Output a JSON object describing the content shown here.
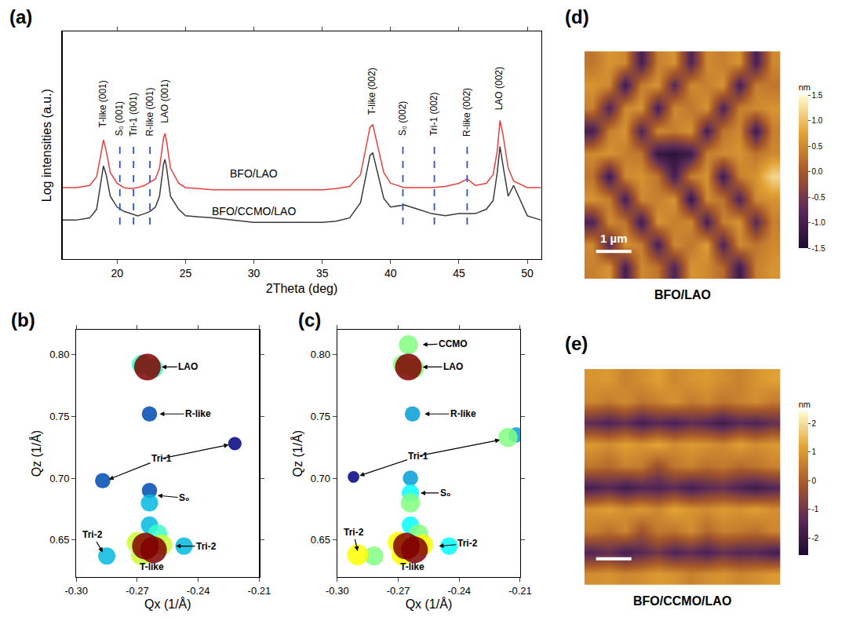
{
  "chart_data": [
    {
      "panel": "(a)",
      "type": "line",
      "xlabel": "2Theta (deg)",
      "ylabel": "Log intensities (a.u.)",
      "xlim": [
        16,
        51
      ],
      "xticks": [
        20,
        25,
        30,
        35,
        40,
        45,
        50
      ],
      "ylim": [
        0,
        10.5
      ],
      "tick_labels": "x",
      "series": [
        {
          "color": "#e8403f",
          "x": [
            16,
            17,
            18,
            18.5,
            18.8,
            19.0,
            19.2,
            19.5,
            20,
            20.5,
            21,
            21.5,
            22,
            22.4,
            22.8,
            23.1,
            23.4,
            23.5,
            23.6,
            23.9,
            24.5,
            25,
            27,
            30,
            33,
            35,
            36,
            37,
            37.8,
            38.2,
            38.5,
            38.7,
            39,
            39.5,
            40,
            41,
            42,
            43,
            44,
            45,
            45.6,
            46.2,
            47,
            47.5,
            47.8,
            48.0,
            48.2,
            48.6,
            49,
            50,
            51
          ],
          "values": [
            3.3,
            3.3,
            3.4,
            3.8,
            4.8,
            5.5,
            5.0,
            4.0,
            3.5,
            3.3,
            3.25,
            3.3,
            3.4,
            3.55,
            3.7,
            4.2,
            5.6,
            5.8,
            5.5,
            4.2,
            3.5,
            3.3,
            3.2,
            3.2,
            3.2,
            3.2,
            3.25,
            3.35,
            3.9,
            5.2,
            6.1,
            6.2,
            5.4,
            4.0,
            3.5,
            3.3,
            3.3,
            3.3,
            3.35,
            3.5,
            3.7,
            3.4,
            3.5,
            3.9,
            5.0,
            6.4,
            5.8,
            4.2,
            3.6,
            3.3,
            3.3
          ]
        },
        {
          "color": "#3a3a3a",
          "x": [
            16,
            17,
            18,
            18.5,
            18.8,
            19.0,
            19.2,
            19.5,
            20,
            20.5,
            21,
            21.5,
            22,
            22.4,
            22.8,
            23.1,
            23.4,
            23.5,
            23.6,
            23.9,
            24.5,
            25,
            27,
            30,
            33,
            35,
            36,
            37,
            37.8,
            38.2,
            38.5,
            38.7,
            39,
            39.5,
            40,
            41,
            42,
            43,
            44,
            45,
            45.6,
            46.2,
            47,
            47.5,
            47.8,
            48.0,
            48.2,
            48.6,
            49,
            50,
            51
          ],
          "values": [
            1.8,
            1.8,
            1.9,
            2.3,
            3.5,
            4.3,
            3.9,
            2.9,
            2.4,
            2.2,
            2.1,
            2.0,
            2.1,
            2.2,
            2.4,
            2.9,
            4.4,
            4.6,
            4.3,
            2.9,
            2.3,
            2.0,
            1.9,
            1.7,
            1.7,
            1.7,
            1.75,
            1.9,
            2.6,
            3.9,
            4.8,
            4.9,
            4.1,
            2.8,
            2.4,
            2.5,
            2.3,
            2.1,
            2.0,
            2.1,
            2.1,
            2.1,
            2.3,
            2.7,
            4.0,
            5.2,
            4.4,
            2.9,
            3.4,
            2.0,
            1.8
          ]
        }
      ],
      "annotations": [
        {
          "text": "BFO/LAO",
          "x": 30,
          "y": 3.6
        },
        {
          "text": "BFO/CCMO/LAO",
          "x": 30,
          "y": 1.85
        }
      ],
      "peak_labels": [
        {
          "text": "T-like (001)",
          "x": 19.0,
          "y": 6.0
        },
        {
          "text": "S₀ (001)",
          "x": 20.2,
          "y": 5.6
        },
        {
          "text": "Tri-1 (001)",
          "x": 21.2,
          "y": 5.6
        },
        {
          "text": "R-like (001)",
          "x": 22.4,
          "y": 5.6
        },
        {
          "text": "LAO (001)",
          "x": 23.5,
          "y": 6.2
        },
        {
          "text": "T-like (002)",
          "x": 38.6,
          "y": 6.6
        },
        {
          "text": "S₀ (002)",
          "x": 40.9,
          "y": 5.6
        },
        {
          "text": "Tri-1 (002)",
          "x": 43.2,
          "y": 5.6
        },
        {
          "text": "R-like (002)",
          "x": 45.6,
          "y": 5.6
        },
        {
          "text": "LAO (002)",
          "x": 47.9,
          "y": 6.8
        }
      ],
      "vlines": {
        "x": [
          20.2,
          21.2,
          22.4,
          40.9,
          43.2,
          45.6
        ],
        "from": 1.6,
        "to": 5.5,
        "color": "#2b4fd8",
        "line_style": "dash"
      }
    },
    {
      "panel": "(b)",
      "type": "scatter",
      "xlabel": "Qx (1/Å)",
      "ylabel": "Qz (1/Å)",
      "xlim": [
        -0.3,
        -0.21
      ],
      "xticks": [
        {
          "value": -0.3,
          "label": "-0.30"
        },
        -0.27,
        -0.24,
        -0.21
      ],
      "ylim": [
        0.62,
        0.82
      ],
      "yticks": [
        0.65,
        {
          "value": 0.7,
          "label": "0.70"
        },
        0.75,
        {
          "value": 0.8,
          "label": "0.80"
        }
      ],
      "x": [
        -0.222,
        -0.264,
        -0.287,
        -0.264,
        -0.264,
        -0.264,
        -0.285,
        -0.247,
        -0.268,
        -0.262,
        -0.26,
        -0.27,
        -0.258,
        -0.268,
        -0.266,
        -0.262,
        -0.265
      ],
      "values": [
        0.728,
        0.752,
        0.698,
        0.69,
        0.68,
        0.662,
        0.637,
        0.645,
        0.792,
        0.789,
        0.655,
        0.648,
        0.646,
        0.638,
        0.645,
        0.642,
        0.79
      ],
      "intensity": [
        3,
        4,
        4,
        4,
        5,
        5,
        5,
        5,
        6,
        6,
        6,
        7,
        7,
        7,
        10,
        10,
        10
      ],
      "labels": [
        {
          "text": "LAO",
          "x": -0.245,
          "y": 0.79,
          "targets": [
            [
              -0.258,
              0.79
            ]
          ]
        },
        {
          "text": "R-like",
          "x": -0.24,
          "y": 0.752,
          "targets": [
            [
              -0.259,
              0.752
            ]
          ]
        },
        {
          "text": "Tri-1",
          "x": -0.258,
          "y": 0.716,
          "targets": [
            [
              -0.284,
              0.699
            ],
            [
              -0.225,
              0.727
            ]
          ]
        },
        {
          "text": "S₀",
          "x": -0.247,
          "y": 0.684,
          "targets": [
            [
              -0.26,
              0.686
            ]
          ]
        },
        {
          "text": "Tri-2",
          "x": -0.292,
          "y": 0.654,
          "targets": [
            [
              -0.287,
              0.64
            ]
          ]
        },
        {
          "text": "Tri-2",
          "x": -0.236,
          "y": 0.645,
          "targets": [
            [
              -0.251,
              0.645
            ]
          ]
        },
        {
          "text": "T-like",
          "x": -0.263,
          "y": 0.628,
          "targets": []
        }
      ]
    },
    {
      "panel": "(c)",
      "type": "scatter",
      "xlabel": "Qx (1/Å)",
      "ylabel": "Qz (1/Å)",
      "xlim": [
        -0.3,
        -0.21
      ],
      "xticks": [
        {
          "value": -0.3,
          "label": "-0.30"
        },
        -0.27,
        -0.24,
        -0.21
      ],
      "ylim": [
        0.62,
        0.82
      ],
      "yticks": [
        0.65,
        {
          "value": 0.7,
          "label": "0.70"
        },
        0.75,
        {
          "value": 0.8,
          "label": "0.80"
        }
      ],
      "x": [
        -0.292,
        -0.263,
        -0.264,
        -0.212,
        -0.264,
        -0.264,
        -0.26,
        -0.245,
        -0.265,
        -0.268,
        -0.262,
        -0.216,
        -0.264,
        -0.282,
        -0.27,
        -0.258,
        -0.268,
        -0.29,
        -0.266,
        -0.262,
        -0.265
      ],
      "values": [
        0.701,
        0.752,
        0.7,
        0.735,
        0.688,
        0.662,
        0.655,
        0.645,
        0.808,
        0.792,
        0.789,
        0.733,
        0.68,
        0.637,
        0.648,
        0.646,
        0.638,
        0.638,
        0.645,
        0.642,
        0.79
      ],
      "intensity": [
        2,
        4,
        4,
        4,
        5,
        5,
        6,
        5,
        6,
        6,
        6,
        6,
        6,
        6,
        7,
        7,
        7,
        7,
        10,
        10,
        10
      ],
      "labels": [
        {
          "text": "CCMO",
          "x": -0.243,
          "y": 0.809,
          "targets": [
            [
              -0.258,
              0.808
            ]
          ]
        },
        {
          "text": "LAO",
          "x": -0.243,
          "y": 0.79,
          "targets": [
            [
              -0.258,
              0.79
            ]
          ]
        },
        {
          "text": "R-like",
          "x": -0.238,
          "y": 0.752,
          "targets": [
            [
              -0.257,
              0.752
            ]
          ]
        },
        {
          "text": "Tri-1",
          "x": -0.26,
          "y": 0.718,
          "targets": [
            [
              -0.289,
              0.702
            ],
            [
              -0.22,
              0.731
            ]
          ]
        },
        {
          "text": "S₀",
          "x": -0.247,
          "y": 0.688,
          "targets": [
            [
              -0.259,
              0.688
            ]
          ]
        },
        {
          "text": "Tri-2",
          "x": -0.292,
          "y": 0.656,
          "targets": [
            [
              -0.29,
              0.641
            ]
          ]
        },
        {
          "text": "Tri-2",
          "x": -0.236,
          "y": 0.647,
          "targets": [
            [
              -0.25,
              0.645
            ]
          ]
        },
        {
          "text": "T-like",
          "x": -0.263,
          "y": 0.628,
          "targets": []
        }
      ]
    },
    {
      "panel": "(d)",
      "type": "heatmap",
      "caption": "BFO/LAO",
      "tick_labels": false,
      "scale_bar": "1 µm",
      "colorbar": {
        "title": "nm",
        "range": [
          -1.5,
          1.5
        ],
        "ticks": [
          {
            "value": -1.5,
            "label": "-1.5"
          },
          {
            "value": -1,
            "label": "-1.0"
          },
          {
            "value": -0.5,
            "label": "-0.5"
          },
          {
            "value": 0,
            "label": "0.0"
          },
          {
            "value": 0.5,
            "label": "0.5"
          },
          {
            "value": 1,
            "label": "1.0"
          },
          {
            "value": 1.5,
            "label": "1.5"
          }
        ]
      },
      "cells": [
        [
          0.4,
          0.6,
          -1.0,
          0.5,
          0.3,
          -0.9,
          0.6,
          0.5,
          0.2,
          -1.1,
          0.4,
          0.6
        ],
        [
          0.5,
          -0.8,
          0.6,
          0.4,
          -1.0,
          0.5,
          0.3,
          0.7,
          -0.9,
          0.5,
          0.3,
          0.5
        ],
        [
          -0.9,
          0.5,
          0.3,
          -1.1,
          0.6,
          0.4,
          0.5,
          -1.0,
          0.4,
          0.6,
          -0.8,
          0.4
        ],
        [
          0.6,
          0.4,
          -1.0,
          0.5,
          0.4,
          0.6,
          -1.2,
          0.5,
          0.3,
          -0.9,
          0.5,
          0.6
        ],
        [
          0.3,
          -1.1,
          0.5,
          0.6,
          0.3,
          -1.0,
          0.4,
          0.6,
          -1.1,
          0.4,
          0.6,
          1.2
        ],
        [
          0.5,
          0.6,
          0.4,
          0.3,
          -1.2,
          -1.3,
          -1.1,
          0.4,
          0.5,
          0.6,
          0.3,
          0.5
        ],
        [
          -1.0,
          0.4,
          0.6,
          -0.9,
          0.5,
          0.4,
          0.6,
          -1.0,
          0.3,
          0.5,
          -1.1,
          0.4
        ],
        [
          0.4,
          -0.9,
          0.5,
          0.6,
          -1.0,
          0.5,
          0.3,
          0.6,
          -0.9,
          0.4,
          0.5,
          0.6
        ],
        [
          0.6,
          0.5,
          -1.1,
          0.4,
          0.6,
          -0.8,
          0.5,
          0.4,
          0.6,
          -1.0,
          0.4,
          0.3
        ],
        [
          0.3,
          0.6,
          0.5,
          -1.0,
          0.4,
          0.6,
          -0.9,
          0.5,
          0.4,
          0.6,
          -1.0,
          0.5
        ]
      ]
    },
    {
      "panel": "(e)",
      "type": "heatmap",
      "caption": "BFO/CCMO/LAO",
      "tick_labels": false,
      "colorbar": {
        "title": "nm",
        "range": [
          -2.6,
          2.4
        ],
        "ticks": [
          -2,
          -1,
          0,
          1,
          2
        ]
      },
      "cells": [
        [
          0.8,
          0.9,
          0.7,
          0.8,
          1.0,
          0.9,
          0.6,
          0.8,
          0.9,
          0.7,
          0.8,
          1.0
        ],
        [
          -1.5,
          -1.2,
          -1.8,
          -1.4,
          -1.0,
          -1.6,
          -1.3,
          -1.7,
          -1.2,
          -1.5,
          -1.4,
          -1.8
        ],
        [
          0.6,
          0.3,
          0.7,
          -0.2,
          0.5,
          0.4,
          0.8,
          0.2,
          0.6,
          0.5,
          0.3,
          0.7
        ],
        [
          0.9,
          1.1,
          0.8,
          1.0,
          0.7,
          1.2,
          0.9,
          0.8,
          1.0,
          0.9,
          1.1,
          0.8
        ],
        [
          -1.7,
          -1.4,
          -1.9,
          -1.5,
          -1.6,
          -1.3,
          -1.8,
          -1.4,
          -1.2,
          -1.6,
          -1.9,
          -1.5
        ],
        [
          0.4,
          0.2,
          0.6,
          0.5,
          -0.3,
          0.4,
          0.6,
          0.3,
          0.5,
          0.2,
          0.4,
          0.6
        ],
        [
          1.0,
          0.8,
          1.1,
          0.9,
          1.2,
          0.8,
          1.0,
          0.9,
          0.7,
          1.1,
          0.8,
          1.0
        ],
        [
          -1.3,
          -1.6,
          -1.2,
          -1.8,
          -1.4,
          -1.7,
          -1.3,
          -1.5,
          -1.9,
          -1.4,
          -1.6,
          -1.2
        ],
        [
          0.7,
          0.5,
          0.8,
          0.4,
          0.6,
          0.9,
          0.5,
          0.7,
          0.4,
          0.6,
          0.8,
          0.5
        ],
        [
          0.9,
          1.0,
          0.6,
          0.8,
          1.1,
          0.7,
          0.9,
          1.0,
          0.8,
          0.6,
          0.9,
          1.1
        ]
      ]
    }
  ]
}
